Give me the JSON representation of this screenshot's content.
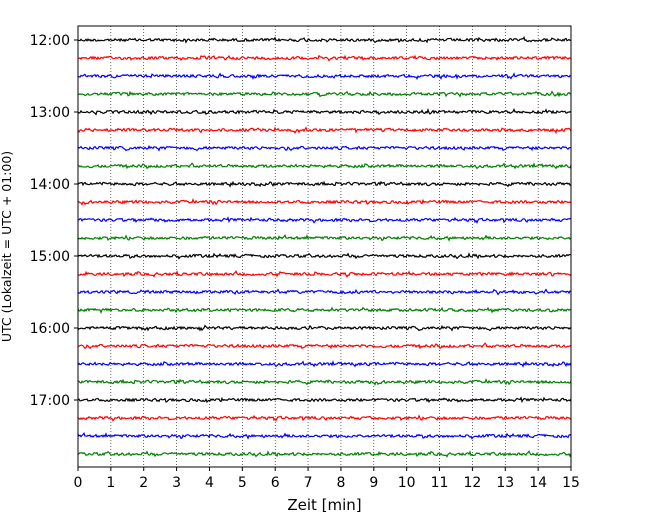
{
  "chart_data": {
    "type": "line",
    "title": "",
    "xlabel": "Zeit  [min]",
    "ylabel": "UTC (Lokalzeit = UTC + 01:00)",
    "xlim": [
      0,
      15
    ],
    "x_ticks": [
      0,
      1,
      2,
      3,
      4,
      5,
      6,
      7,
      8,
      9,
      10,
      11,
      12,
      13,
      14,
      15
    ],
    "x_tick_labels": [
      "0",
      "1",
      "2",
      "3",
      "4",
      "5",
      "6",
      "7",
      "8",
      "9",
      "10",
      "11",
      "12",
      "13",
      "14",
      "15"
    ],
    "y_tick_labels": [
      "12:00",
      "13:00",
      "14:00",
      "15:00",
      "16:00",
      "17:00"
    ],
    "grid": "vertical dotted at each minute",
    "trace_colors": [
      "#000000",
      "#ff0000",
      "#0000ff",
      "#008000"
    ],
    "traces": [
      {
        "start": "12:00"
      },
      {
        "start": "12:15"
      },
      {
        "start": "12:30"
      },
      {
        "start": "12:45"
      },
      {
        "start": "13:00"
      },
      {
        "start": "13:15"
      },
      {
        "start": "13:30"
      },
      {
        "start": "13:45"
      },
      {
        "start": "14:00"
      },
      {
        "start": "14:15"
      },
      {
        "start": "14:30"
      },
      {
        "start": "14:45"
      },
      {
        "start": "15:00"
      },
      {
        "start": "15:15"
      },
      {
        "start": "15:30"
      },
      {
        "start": "15:45"
      },
      {
        "start": "16:00"
      },
      {
        "start": "16:15"
      },
      {
        "start": "16:30"
      },
      {
        "start": "16:45"
      },
      {
        "start": "17:00"
      },
      {
        "start": "17:15"
      },
      {
        "start": "17:30"
      },
      {
        "start": "17:45"
      }
    ]
  }
}
